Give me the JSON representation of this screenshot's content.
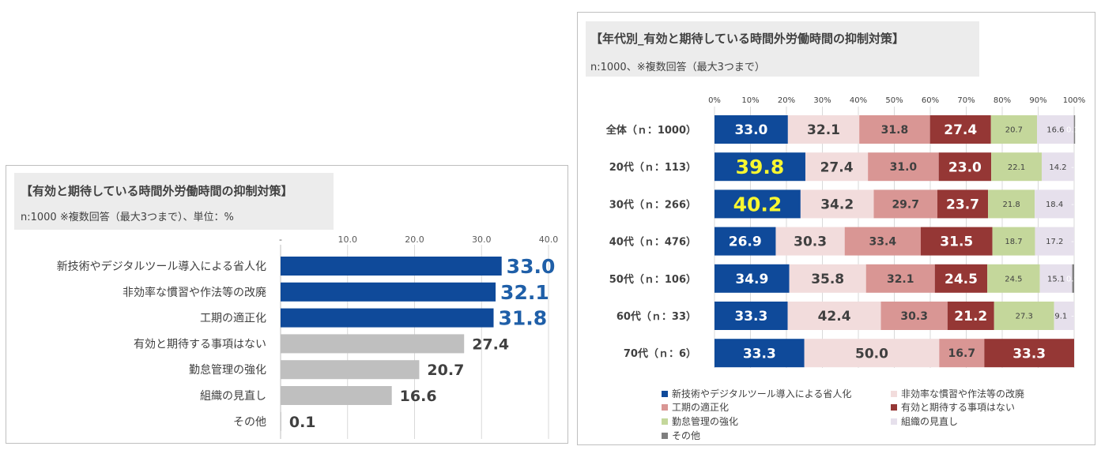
{
  "left": {
    "title": "【有効と期待している時間外労働時間の抑制対策】",
    "subtitle": "n:1000 ※複数回答（最大3つまで）、単位：%"
  },
  "right": {
    "title": "【年代別_有効と期待している時間外労働時間の抑制対策】",
    "subtitle": "n:1000、※複数回答（最大3つまで）"
  },
  "chart_data": [
    {
      "type": "bar",
      "orientation": "horizontal",
      "title": "【有効と期待している時間外労働時間の抑制対策】",
      "unit": "%",
      "categories": [
        "新技術やデジタルツール導入による省人化",
        "非効率な慣習や作法等の改廃",
        "工期の適正化",
        "有効と期待する事項はない",
        "勤怠管理の強化",
        "組織の見直し",
        "その他"
      ],
      "values": [
        33.0,
        32.1,
        31.8,
        27.4,
        20.7,
        16.6,
        0.1
      ],
      "value_labels": [
        "33.0",
        "32.1",
        "31.8",
        "27.4",
        "20.7",
        "16.6",
        "0.1"
      ],
      "highlighted": [
        true,
        true,
        true,
        false,
        false,
        false,
        false
      ],
      "xlim": [
        0,
        40
      ],
      "ticks": [
        0,
        10,
        20,
        30,
        40
      ],
      "tick_labels": [
        "-",
        "10.0",
        "20.0",
        "30.0",
        "40.0"
      ],
      "colors": {
        "highlight": "#0f4a9a",
        "normal": "#bfbfbf",
        "highlight_label": "#1f5fa8",
        "normal_label": "#404040"
      }
    },
    {
      "type": "bar",
      "orientation": "horizontal",
      "stacked": "percent",
      "title": "【年代別_有効と期待している時間外労働時間の抑制対策】",
      "categories": [
        "全体（ｎ：1000）",
        "20代（ｎ：113）",
        "30代（ｎ：266）",
        "40代（ｎ：476）",
        "50代（ｎ：106）",
        "60代（ｎ：33）",
        "70代（ｎ：6）"
      ],
      "series": [
        {
          "name": "新技術やデジタルツール導入による省人化",
          "color": "#0f4a9a",
          "values": [
            33.0,
            39.8,
            40.2,
            26.9,
            34.9,
            33.3,
            33.3
          ]
        },
        {
          "name": "非効率な慣習や作法等の改廃",
          "color": "#f2dcdc",
          "values": [
            32.1,
            27.4,
            34.2,
            30.3,
            35.8,
            42.4,
            50.0
          ]
        },
        {
          "name": "工期の適正化",
          "color": "#d99694",
          "values": [
            31.8,
            31.0,
            29.7,
            33.4,
            32.1,
            30.3,
            16.7
          ]
        },
        {
          "name": "有効と期待する事項はない",
          "color": "#953735",
          "values": [
            27.4,
            23.0,
            23.7,
            31.5,
            24.5,
            21.2,
            33.3
          ]
        },
        {
          "name": "勤怠管理の強化",
          "color": "#c4d79b",
          "values": [
            20.7,
            22.1,
            21.8,
            18.7,
            24.5,
            27.3,
            0
          ]
        },
        {
          "name": "組織の見直し",
          "color": "#e6e0ec",
          "values": [
            16.6,
            14.2,
            18.4,
            17.2,
            15.1,
            9.1,
            0
          ]
        },
        {
          "name": "その他",
          "color": "#7f7f7f",
          "values": [
            0.1,
            0,
            0,
            0,
            0.9,
            0,
            0
          ]
        }
      ],
      "value_labels": [
        [
          "33.0",
          "32.1",
          "31.8",
          "27.4",
          "20.7",
          "16.6",
          "0.1"
        ],
        [
          "39.8",
          "27.4",
          "31.0",
          "23.0",
          "22.1",
          "14.2",
          "-"
        ],
        [
          "40.2",
          "34.2",
          "29.7",
          "23.7",
          "21.8",
          "18.4",
          "-"
        ],
        [
          "26.9",
          "30.3",
          "33.4",
          "31.5",
          "18.7",
          "17.2",
          "-"
        ],
        [
          "34.9",
          "35.8",
          "32.1",
          "24.5",
          "24.5",
          "15.1",
          "0.9"
        ],
        [
          "33.3",
          "42.4",
          "30.3",
          "21.2",
          "27.3",
          "9.1",
          "-"
        ],
        [
          "33.3",
          "50.0",
          "16.7",
          "33.3",
          "",
          "",
          ""
        ]
      ],
      "highlight_value_color": "#f7f731",
      "highlight_cells": [
        [
          1,
          0
        ],
        [
          2,
          0
        ]
      ],
      "xlim": [
        0,
        100
      ],
      "tick_labels": [
        "0%",
        "10%",
        "20%",
        "30%",
        "40%",
        "50%",
        "60%",
        "70%",
        "80%",
        "90%",
        "100%"
      ]
    }
  ]
}
